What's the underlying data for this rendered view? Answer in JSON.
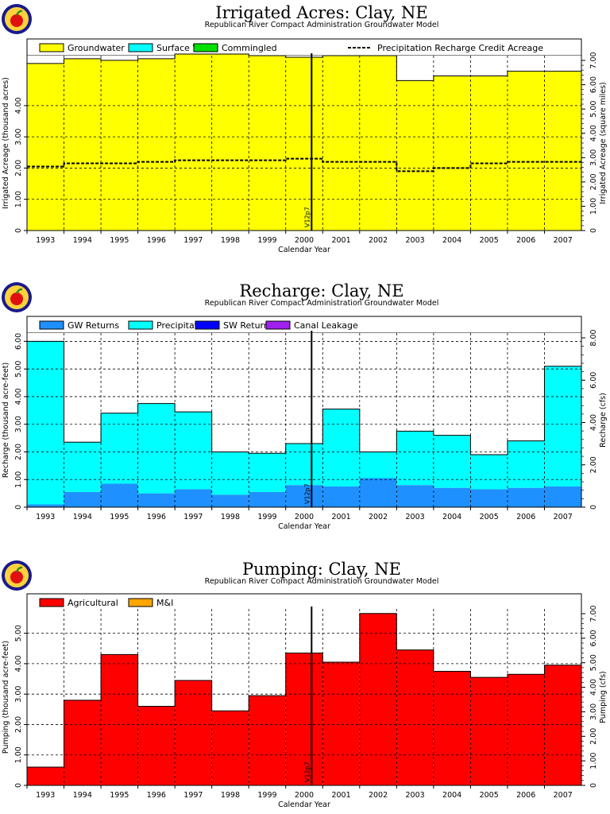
{
  "chart_data": [
    {
      "type": "area",
      "title": "Irrigated Acres: Clay, NE",
      "subtitle": "Republican River Compact Administration Groundwater Model",
      "xlabel": "Calendar Year",
      "ylabel": "Irrigated Acreage (thousand acres)",
      "ylabel_right": "Irrigated Acreage (square miles)",
      "categories": [
        "1993",
        "1994",
        "1995",
        "1996",
        "1997",
        "1998",
        "1999",
        "2000",
        "2001",
        "2002",
        "2003",
        "2004",
        "2005",
        "2006",
        "2007"
      ],
      "ylim": [
        0,
        5.6
      ],
      "y_ticks": [
        "0",
        "1.00",
        "2.00",
        "3.00",
        "4.00"
      ],
      "y_ticks_right": [
        "0",
        "1.00",
        "2.00",
        "3.00",
        "4.00",
        "5.00",
        "6.00",
        "7.00"
      ],
      "series": [
        {
          "name": "Groundwater",
          "color": "#ffff00",
          "values": [
            5.35,
            5.5,
            5.45,
            5.5,
            5.65,
            5.65,
            5.6,
            5.55,
            5.6,
            5.6,
            4.8,
            4.95,
            4.95,
            5.1,
            5.1
          ]
        },
        {
          "name": "Surface Water",
          "color": "#00ffff",
          "values": [
            0,
            0,
            0,
            0,
            0,
            0,
            0,
            0,
            0,
            0,
            0,
            0,
            0,
            0,
            0
          ]
        },
        {
          "name": "Commingled",
          "color": "#00e000",
          "values": [
            0,
            0,
            0,
            0,
            0,
            0,
            0,
            0,
            0,
            0,
            0,
            0,
            0,
            0,
            0
          ]
        }
      ],
      "dashed_series": {
        "name": "Precipitation Recharge Credit Acreage",
        "values": [
          2.05,
          2.15,
          2.15,
          2.2,
          2.25,
          2.25,
          2.25,
          2.3,
          2.2,
          2.2,
          1.9,
          2.0,
          2.15,
          2.2,
          2.2
        ]
      },
      "vline_label": "V12p7",
      "legend_position": "top",
      "grid": true
    },
    {
      "type": "area",
      "title": "Recharge: Clay, NE",
      "subtitle": "Republican River Compact Administration Groundwater Model",
      "xlabel": "Calendar Year",
      "ylabel": "Recharge (thousand acre-feet)",
      "ylabel_right": "Recharge (cfs)",
      "categories": [
        "1993",
        "1994",
        "1995",
        "1996",
        "1997",
        "1998",
        "1999",
        "2000",
        "2001",
        "2002",
        "2003",
        "2004",
        "2005",
        "2006",
        "2007"
      ],
      "ylim": [
        0,
        6.3
      ],
      "y_ticks": [
        "0",
        "1.00",
        "2.00",
        "3.00",
        "4.00",
        "5.00",
        "6.00"
      ],
      "y_ticks_right": [
        "0",
        "2.00",
        "4.00",
        "6.00",
        "8.00"
      ],
      "series": [
        {
          "name": "GW Returns",
          "color": "#1e90ff",
          "values": [
            0.1,
            0.55,
            0.85,
            0.5,
            0.65,
            0.45,
            0.55,
            0.8,
            0.75,
            1.05,
            0.8,
            0.7,
            0.65,
            0.7,
            0.75
          ]
        },
        {
          "name": "Precipitation",
          "color": "#00ffff",
          "values": [
            5.9,
            1.8,
            2.55,
            3.25,
            2.8,
            1.55,
            1.4,
            1.5,
            2.8,
            0.95,
            1.95,
            1.9,
            1.25,
            1.7,
            4.35
          ]
        },
        {
          "name": "SW Returns",
          "color": "#0000ff",
          "values": [
            0,
            0,
            0,
            0,
            0,
            0,
            0,
            0,
            0,
            0,
            0,
            0,
            0,
            0,
            0
          ]
        },
        {
          "name": "Canal Leakage",
          "color": "#a020f0",
          "values": [
            0,
            0,
            0,
            0,
            0,
            0,
            0,
            0,
            0,
            0,
            0,
            0,
            0,
            0,
            0
          ]
        }
      ],
      "vline_label": "V12p7",
      "legend_position": "top",
      "grid": true
    },
    {
      "type": "area",
      "title": "Pumping: Clay, NE",
      "subtitle": "Republican River Compact Administration Groundwater Model",
      "xlabel": "Calendar Year",
      "ylabel": "Pumping (thousand acre-feet)",
      "ylabel_right": "Pumping (cfs)",
      "categories": [
        "1993",
        "1994",
        "1995",
        "1996",
        "1997",
        "1998",
        "1999",
        "2000",
        "2001",
        "2002",
        "2003",
        "2004",
        "2005",
        "2006",
        "2007"
      ],
      "ylim": [
        0,
        5.8
      ],
      "y_ticks": [
        "0",
        "1.00",
        "2.00",
        "3.00",
        "4.00",
        "5.00"
      ],
      "y_ticks_right": [
        "0",
        "1.00",
        "2.00",
        "3.00",
        "4.00",
        "5.00",
        "6.00",
        "7.00"
      ],
      "series": [
        {
          "name": "Agricultural",
          "color": "#ff0000",
          "values": [
            0.6,
            2.8,
            4.3,
            2.6,
            3.45,
            2.45,
            2.95,
            4.35,
            4.05,
            5.65,
            4.45,
            3.75,
            3.55,
            3.65,
            3.95
          ]
        },
        {
          "name": "M&I",
          "color": "#ffa500",
          "values": [
            0,
            0,
            0,
            0,
            0,
            0,
            0,
            0,
            0,
            0,
            0,
            0,
            0,
            0,
            0
          ]
        }
      ],
      "vline_label": "V12p7",
      "legend_position": "top",
      "grid": true
    }
  ]
}
